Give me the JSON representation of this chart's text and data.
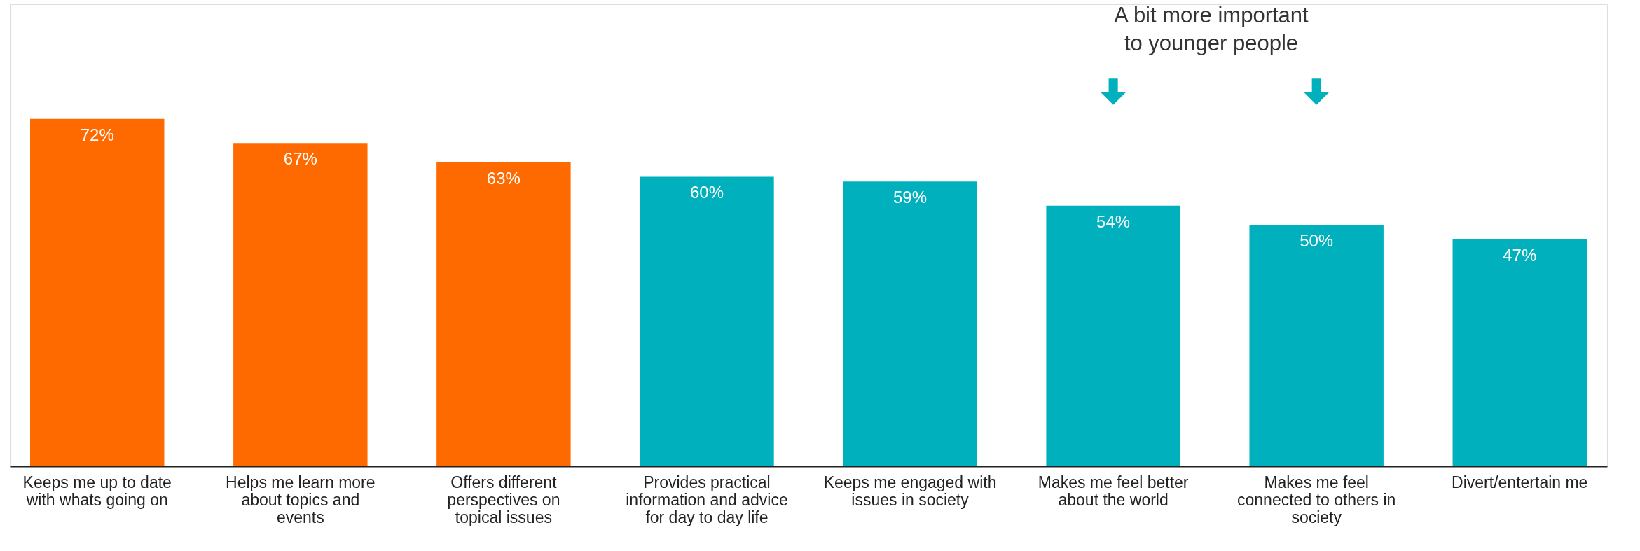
{
  "chart_data": {
    "type": "bar",
    "categories": [
      "Keeps me up to date with whats going on",
      "Helps me learn more about topics and events",
      "Offers different perspectives on topical issues",
      "Provides practical information and advice for day to day life",
      "Keeps me engaged with issues in society",
      "Makes me feel better about the world",
      "Makes me feel connected to others in society",
      "Divert/entertain me"
    ],
    "values": [
      72,
      67,
      63,
      60,
      59,
      54,
      50,
      47
    ],
    "colors": [
      "#ff6a00",
      "#ff6a00",
      "#ff6a00",
      "#00b0bd",
      "#00b0bd",
      "#00b0bd",
      "#00b0bd",
      "#00b0bd"
    ],
    "value_labels": [
      "72%",
      "67%",
      "63%",
      "60%",
      "59%",
      "54%",
      "50%",
      "47%"
    ],
    "annotations": [
      "A bit more important to younger people"
    ],
    "grid": false
  }
}
